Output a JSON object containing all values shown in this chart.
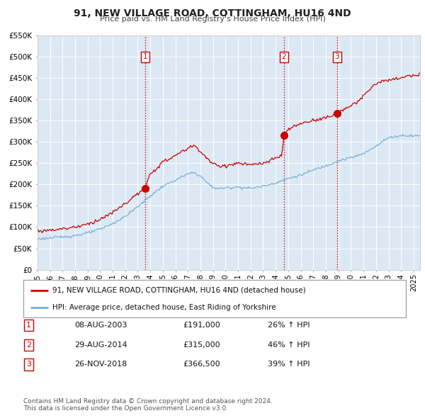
{
  "title": "91, NEW VILLAGE ROAD, COTTINGHAM, HU16 4ND",
  "subtitle": "Price paid vs. HM Land Registry's House Price Index (HPI)",
  "background_color": "#ffffff",
  "plot_bg_color": "#dce9f5",
  "grid_color": "#ffffff",
  "ylim": [
    0,
    550000
  ],
  "yticks": [
    0,
    50000,
    100000,
    150000,
    200000,
    250000,
    300000,
    350000,
    400000,
    450000,
    500000,
    550000
  ],
  "ytick_labels": [
    "£0",
    "£50K",
    "£100K",
    "£150K",
    "£200K",
    "£250K",
    "£300K",
    "£350K",
    "£400K",
    "£450K",
    "£500K",
    "£550K"
  ],
  "xlim_start": 1995.0,
  "xlim_end": 2025.5,
  "xtick_years": [
    1995,
    1996,
    1997,
    1998,
    1999,
    2000,
    2001,
    2002,
    2003,
    2004,
    2005,
    2006,
    2007,
    2008,
    2009,
    2010,
    2011,
    2012,
    2013,
    2014,
    2015,
    2016,
    2017,
    2018,
    2019,
    2020,
    2021,
    2022,
    2023,
    2024,
    2025
  ],
  "red_line_color": "#cc0000",
  "blue_line_color": "#7aaed6",
  "sale_marker_color": "#cc0000",
  "sale_marker_size": 7,
  "vline_color": "#cc0000",
  "sale_box_color": "#cc0000",
  "transactions": [
    {
      "label": "1",
      "date_num": 2003.6,
      "price": 191000,
      "date_str": "08-AUG-2003",
      "price_str": "£191,000",
      "pct_str": "26% ↑ HPI"
    },
    {
      "label": "2",
      "date_num": 2014.66,
      "price": 315000,
      "date_str": "29-AUG-2014",
      "price_str": "£315,000",
      "pct_str": "46% ↑ HPI"
    },
    {
      "label": "3",
      "date_num": 2018.9,
      "price": 366500,
      "date_str": "26-NOV-2018",
      "price_str": "£366,500",
      "pct_str": "39% ↑ HPI"
    }
  ],
  "legend_line1": "91, NEW VILLAGE ROAD, COTTINGHAM, HU16 4ND (detached house)",
  "legend_line2": "HPI: Average price, detached house, East Riding of Yorkshire",
  "footer1": "Contains HM Land Registry data © Crown copyright and database right 2024.",
  "footer2": "This data is licensed under the Open Government Licence v3.0."
}
